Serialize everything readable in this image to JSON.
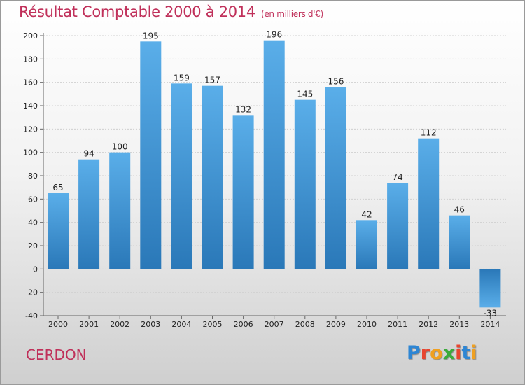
{
  "header": {
    "title": "Résultat Comptable 2000 à 2014",
    "subtitle": "(en milliers d'€)"
  },
  "footer": {
    "town": "CERDON",
    "logo_text": "Proxiti",
    "logo_colors": [
      "#2e86d4",
      "#e8452f",
      "#f0a020",
      "#3bab3b",
      "#e8452f",
      "#2e86d4",
      "#f0a020"
    ]
  },
  "colors": {
    "bar_light": "#5aaee9",
    "bar_dark": "#2a78b8",
    "title": "#c0305a",
    "grid": "#d0d0d0"
  },
  "chart_data": {
    "type": "bar",
    "categories": [
      "2000",
      "2001",
      "2002",
      "2003",
      "2004",
      "2005",
      "2006",
      "2007",
      "2008",
      "2009",
      "2010",
      "2011",
      "2012",
      "2013",
      "2014"
    ],
    "values": [
      65,
      94,
      100,
      195,
      159,
      157,
      132,
      196,
      145,
      156,
      42,
      74,
      112,
      46,
      -33
    ],
    "ylim": [
      -40,
      200
    ],
    "yticks": [
      -40,
      -20,
      0,
      20,
      40,
      60,
      80,
      100,
      120,
      140,
      160,
      180,
      200
    ],
    "grid": true,
    "xlabel": "",
    "ylabel": ""
  }
}
